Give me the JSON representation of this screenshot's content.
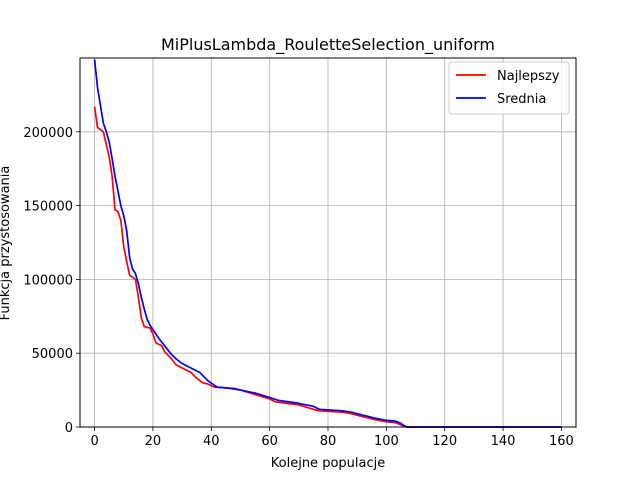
{
  "chart_data": {
    "type": "line",
    "title": "MiPlusLambda_RouletteSelection_uniform",
    "xlabel": "Kolejne populacje",
    "ylabel": "Funkcja przystosowania",
    "xlim": [
      -5,
      165
    ],
    "ylim": [
      0,
      250000
    ],
    "xticks": [
      0,
      20,
      40,
      60,
      80,
      100,
      120,
      140,
      160
    ],
    "yticks": [
      0,
      50000,
      100000,
      150000,
      200000
    ],
    "xtick_labels": [
      "0",
      "20",
      "40",
      "60",
      "80",
      "100",
      "120",
      "140",
      "160"
    ],
    "ytick_labels": [
      "0",
      "50000",
      "100000",
      "150000",
      "200000"
    ],
    "grid": true,
    "legend_position": "top-right",
    "series": [
      {
        "name": "Najlepszy",
        "color": "#ff0000",
        "points": [
          [
            0,
            217000
          ],
          [
            1,
            203000
          ],
          [
            3,
            200000
          ],
          [
            5,
            183000
          ],
          [
            6,
            170000
          ],
          [
            7,
            147000
          ],
          [
            8,
            146000
          ],
          [
            9,
            140000
          ],
          [
            10,
            122000
          ],
          [
            11,
            112000
          ],
          [
            12,
            103000
          ],
          [
            14,
            100000
          ],
          [
            15,
            88000
          ],
          [
            16,
            74000
          ],
          [
            17,
            68000
          ],
          [
            19,
            67000
          ],
          [
            20,
            63000
          ],
          [
            21,
            57000
          ],
          [
            23,
            55000
          ],
          [
            24,
            51000
          ],
          [
            26,
            47000
          ],
          [
            28,
            42000
          ],
          [
            30,
            40000
          ],
          [
            33,
            37000
          ],
          [
            35,
            33000
          ],
          [
            37,
            30000
          ],
          [
            39,
            29000
          ],
          [
            41,
            27000
          ],
          [
            45,
            26500
          ],
          [
            50,
            25000
          ],
          [
            55,
            22000
          ],
          [
            60,
            19000
          ],
          [
            62,
            17000
          ],
          [
            70,
            15000
          ],
          [
            75,
            12000
          ],
          [
            77,
            11000
          ],
          [
            85,
            10000
          ],
          [
            88,
            9000
          ],
          [
            92,
            7000
          ],
          [
            96,
            5000
          ],
          [
            100,
            3500
          ],
          [
            103,
            3000
          ],
          [
            105,
            1500
          ],
          [
            106,
            500
          ],
          [
            107,
            0
          ],
          [
            160,
            0
          ]
        ]
      },
      {
        "name": "Srednia",
        "color": "#0000ff",
        "points": [
          [
            0,
            249000
          ],
          [
            1,
            230000
          ],
          [
            2,
            218000
          ],
          [
            3,
            206000
          ],
          [
            4,
            200000
          ],
          [
            5,
            193000
          ],
          [
            6,
            182000
          ],
          [
            7,
            170000
          ],
          [
            8,
            160000
          ],
          [
            9,
            150000
          ],
          [
            10,
            143000
          ],
          [
            11,
            133000
          ],
          [
            12,
            115000
          ],
          [
            13,
            107000
          ],
          [
            14,
            104000
          ],
          [
            15,
            97000
          ],
          [
            16,
            88000
          ],
          [
            17,
            80000
          ],
          [
            18,
            73000
          ],
          [
            19,
            69000
          ],
          [
            20,
            66000
          ],
          [
            22,
            60000
          ],
          [
            24,
            55000
          ],
          [
            26,
            50000
          ],
          [
            28,
            46000
          ],
          [
            30,
            43000
          ],
          [
            33,
            40000
          ],
          [
            36,
            37000
          ],
          [
            39,
            31000
          ],
          [
            42,
            27000
          ],
          [
            45,
            26500
          ],
          [
            48,
            26000
          ],
          [
            50,
            25000
          ],
          [
            55,
            23000
          ],
          [
            60,
            20000
          ],
          [
            63,
            18000
          ],
          [
            70,
            16000
          ],
          [
            75,
            14000
          ],
          [
            77,
            12000
          ],
          [
            85,
            11000
          ],
          [
            88,
            10000
          ],
          [
            92,
            8000
          ],
          [
            96,
            6000
          ],
          [
            100,
            4500
          ],
          [
            103,
            4000
          ],
          [
            105,
            2500
          ],
          [
            106,
            1000
          ],
          [
            107,
            0
          ],
          [
            160,
            0
          ]
        ]
      }
    ]
  }
}
